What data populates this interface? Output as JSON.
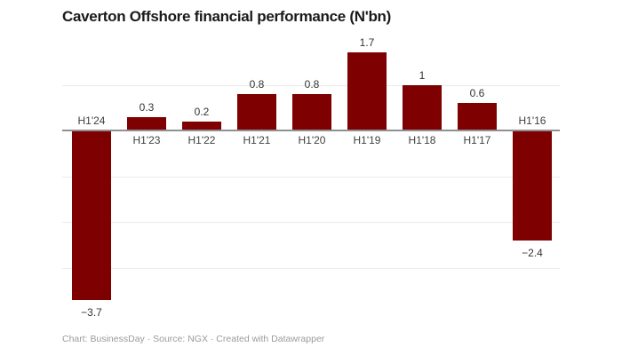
{
  "header": {
    "title": "Caverton Offshore financial performance (N'bn)"
  },
  "footer": {
    "text": "Chart: BusinessDay · Source: NGX · Created with Datawrapper"
  },
  "colors": {
    "bar": "#7f0000",
    "axis_line": "#909090",
    "gridline": "#ebebeb",
    "title_text": "#1a1a1a",
    "value_label": "#333333",
    "category_label": "#404040",
    "footer_text": "#9b9b9b"
  },
  "chart_data": {
    "type": "bar",
    "title": "Caverton Offshore financial performance (N'bn)",
    "categories": [
      "H1'24",
      "H1'23",
      "H1'22",
      "H1'21",
      "H1'20",
      "H1'19",
      "H1'18",
      "H1'17",
      "H1'16"
    ],
    "values": [
      -3.7,
      0.3,
      0.2,
      0.8,
      0.8,
      1.7,
      1,
      0.6,
      -2.4
    ],
    "value_labels": [
      "−3.7",
      "0.3",
      "0.2",
      "0.8",
      "0.8",
      "1.7",
      "1",
      "0.6",
      "−2.4"
    ],
    "gridline_values": [
      1,
      -1,
      -2,
      -3
    ],
    "ylim": [
      -4,
      2
    ],
    "xlabel": "",
    "ylabel": "",
    "legend": "none",
    "grid": "horizontal gridlines, no y-axis tick labels, data labels on bars",
    "orientation": "vertical-column",
    "negative_bars": [
      "H1'24",
      "H1'16"
    ]
  }
}
